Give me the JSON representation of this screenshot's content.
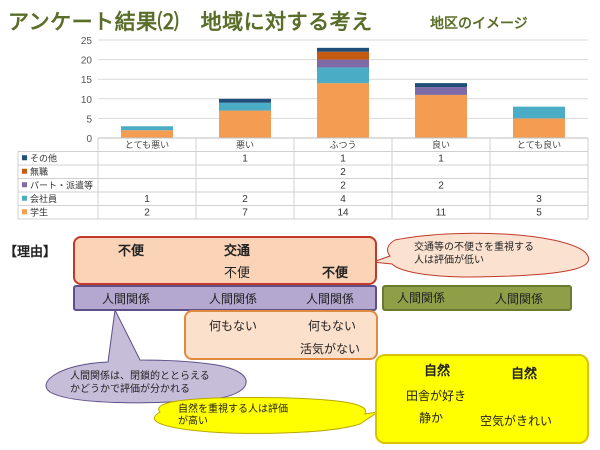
{
  "header": {
    "title": "アンケート結果⑵　地域に対する考え",
    "subtitle": "地区のイメージ"
  },
  "chart_data": {
    "type": "bar",
    "stacked": true,
    "categories": [
      "とても悪い",
      "悪い",
      "ふつう",
      "良い",
      "とても良い"
    ],
    "ylim": [
      0,
      25
    ],
    "yticks": [
      0,
      5,
      10,
      15,
      20,
      25
    ],
    "grid": true,
    "legend": "table-below",
    "table_values": [
      [
        "",
        "1",
        "1",
        "1",
        ""
      ],
      [
        "",
        "",
        "2",
        "",
        ""
      ],
      [
        "",
        "",
        "2",
        "2",
        ""
      ],
      [
        "1",
        "2",
        "4",
        "",
        "3"
      ],
      [
        "2",
        "7",
        "14",
        "11",
        "5"
      ]
    ],
    "series": [
      {
        "name": "その他",
        "color": "#1f4e79",
        "values": [
          0,
          1,
          1,
          1,
          0
        ]
      },
      {
        "name": "無職",
        "color": "#c55a11",
        "values": [
          0,
          0,
          2,
          0,
          0
        ]
      },
      {
        "name": "パート・派遣等",
        "color": "#7e6aa6",
        "values": [
          0,
          0,
          2,
          2,
          0
        ]
      },
      {
        "name": "会社員",
        "color": "#4bacc6",
        "values": [
          1,
          2,
          4,
          0,
          3
        ]
      },
      {
        "name": "学生",
        "color": "#f39c52",
        "values": [
          2,
          7,
          14,
          11,
          5
        ]
      }
    ]
  },
  "reasons": {
    "heading": "【理由】",
    "red_box": {
      "fuben": "不便",
      "kotsu": "交通",
      "fuben2": "不便",
      "fuben3": "不便"
    },
    "red_callout": "交通等の不便さを重視する\n人は評価が低い",
    "purple_items": [
      "人間関係",
      "人間関係",
      "人間関係"
    ],
    "green_items": [
      "人間関係",
      "人間関係"
    ],
    "orange_items": {
      "nanimo1": "何もない",
      "nanimo2": "何もない",
      "kakki": "活気がない"
    },
    "purple_callout": "人間関係は、閉鎖的ととらえる\nかどうかで評価が分かれる",
    "yellow_box": {
      "shizen1": "自然",
      "shizen2": "自然",
      "inaka": "田舎が好き",
      "shizuka": "静か",
      "kuki": "空気がきれい"
    },
    "yellow_callout": "自然を重視する人は評価\nが高い"
  }
}
